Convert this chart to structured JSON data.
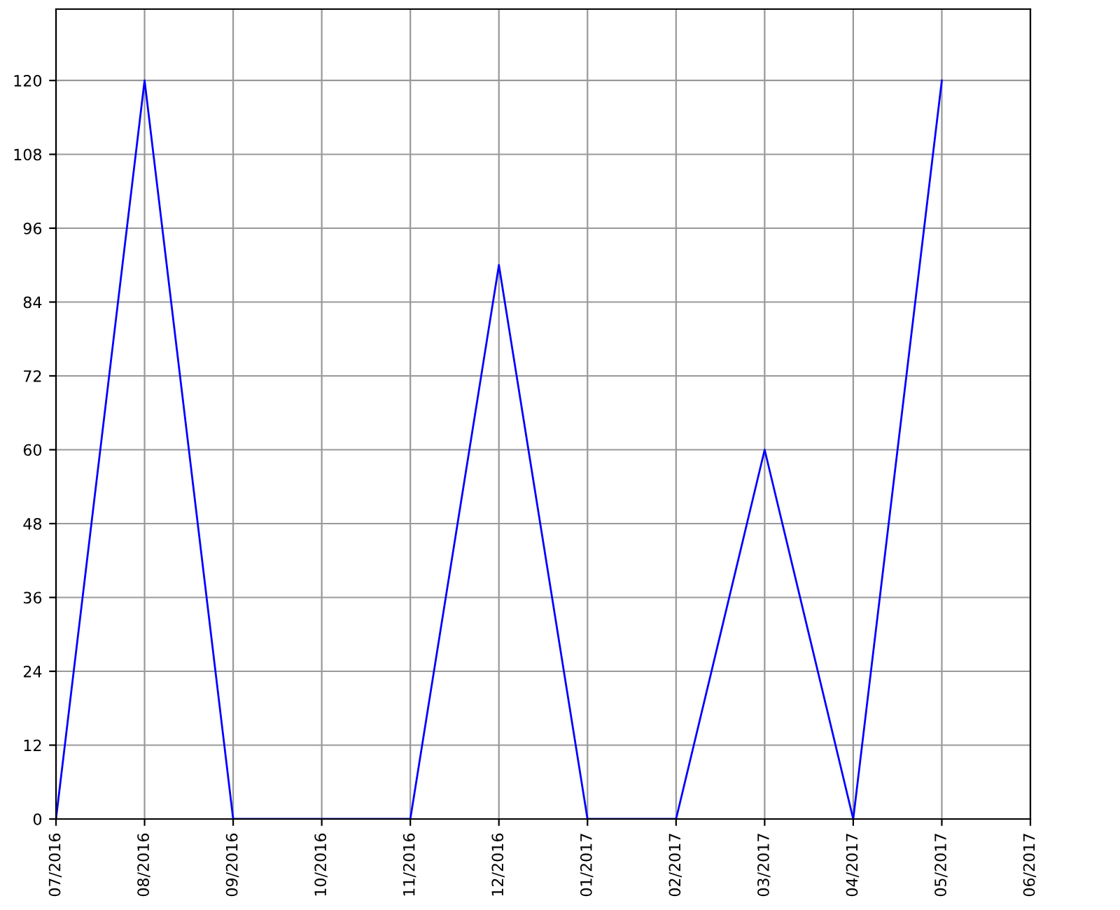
{
  "chart_data": {
    "type": "line",
    "categories": [
      "07/2016",
      "08/2016",
      "09/2016",
      "10/2016",
      "11/2016",
      "12/2016",
      "01/2017",
      "02/2017",
      "03/2017",
      "04/2017",
      "05/2017",
      "06/2017"
    ],
    "series": [
      {
        "color": "#0000ff",
        "values": [
          0,
          120,
          0,
          0,
          0,
          90,
          0,
          0,
          60,
          0,
          120,
          null
        ]
      }
    ],
    "ylim": [
      0,
      131.6
    ],
    "yticks": [
      0,
      12,
      24,
      36,
      48,
      60,
      72,
      84,
      96,
      108,
      120
    ],
    "grid": true,
    "marker": "none",
    "line_style": "solid"
  }
}
